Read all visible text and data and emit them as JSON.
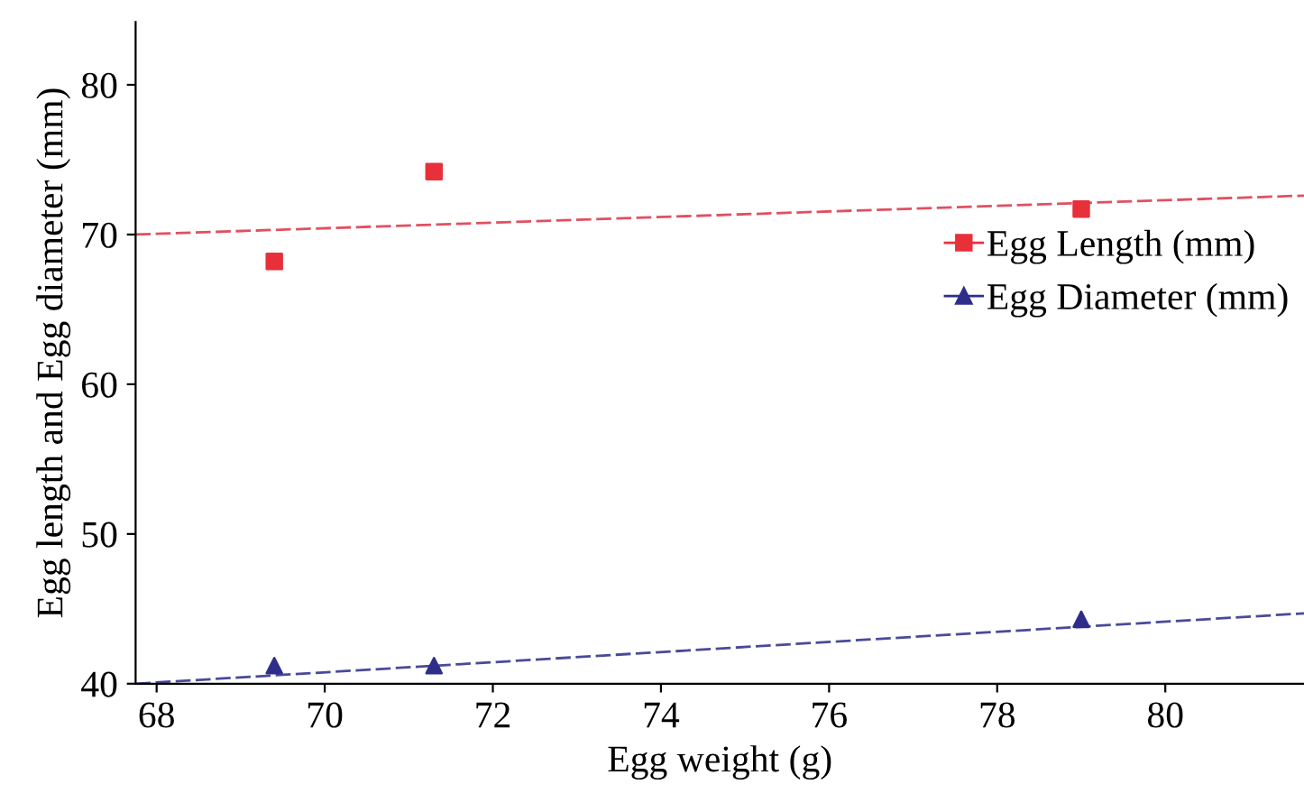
{
  "chart_data": {
    "type": "scatter",
    "xlabel": "Egg weight (g)",
    "ylabel": "Egg length and Egg diameter (mm)",
    "xlim": [
      67.75,
      81.65
    ],
    "ylim": [
      40,
      84.2
    ],
    "xticks": [
      68,
      70,
      72,
      74,
      76,
      78,
      80
    ],
    "yticks": [
      40,
      50,
      60,
      70,
      80
    ],
    "grid": false,
    "legend": "right",
    "series": [
      {
        "name": "Egg Length (mm)",
        "color": "#e8303a",
        "marker": "square",
        "x": [
          69.4,
          71.3,
          79.0
        ],
        "values": [
          68.2,
          74.2,
          71.7
        ]
      },
      {
        "name": "Egg Diameter (mm)",
        "color": "#2e2e8a",
        "marker": "triangle",
        "x": [
          69.4,
          71.3,
          79.0
        ],
        "values": [
          41.2,
          41.2,
          44.3
        ]
      },
      {
        "type": "line",
        "color": "#e05060",
        "line_style": "dashed",
        "marker": "none",
        "x": [
          67.75,
          81.65
        ],
        "values": [
          70.0,
          72.6
        ]
      },
      {
        "type": "line",
        "color": "#4a4a9a",
        "line_style": "dashed",
        "marker": "none",
        "x": [
          67.75,
          81.65
        ],
        "values": [
          40.0,
          44.7
        ]
      }
    ]
  }
}
